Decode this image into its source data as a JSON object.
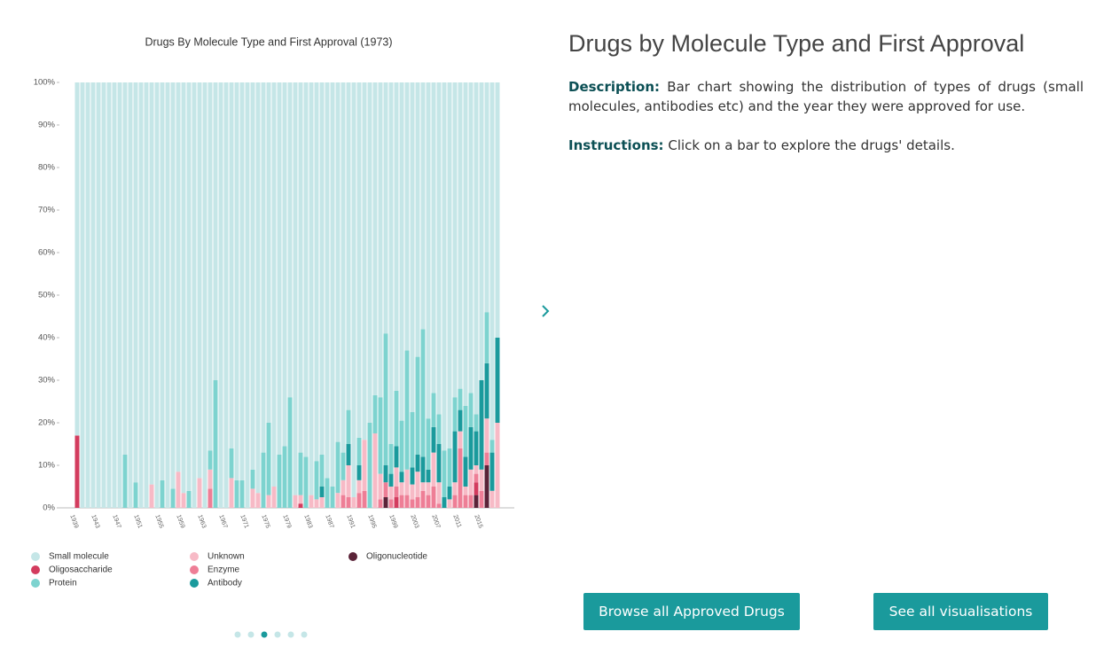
{
  "chart_data": {
    "type": "bar",
    "stacked": true,
    "title": "Drugs By Molecule Type and First Approval (1973)",
    "categories": [
      "1939",
      null,
      null,
      null,
      "1943",
      null,
      null,
      null,
      "1947",
      null,
      null,
      null,
      "1951",
      null,
      null,
      null,
      "1955",
      null,
      null,
      null,
      "1959",
      null,
      null,
      null,
      "1963",
      null,
      null,
      null,
      "1967",
      null,
      null,
      null,
      "1971",
      null,
      null,
      null,
      "1975",
      null,
      null,
      null,
      "1979",
      null,
      null,
      null,
      "1983",
      null,
      null,
      null,
      "1987",
      null,
      null,
      null,
      "1991",
      null,
      null,
      null,
      "1995",
      null,
      null,
      null,
      "1999",
      null,
      null,
      null,
      "2003",
      null,
      null,
      null,
      "2007",
      null,
      null,
      null,
      "2011",
      null,
      null,
      null,
      "2015",
      null,
      null,
      null
    ],
    "ylim": [
      0,
      100
    ],
    "yticks": [
      {
        "value": 0,
        "label": "0%"
      },
      {
        "value": 10,
        "label": "10%"
      },
      {
        "value": 20,
        "label": "20%"
      },
      {
        "value": 30,
        "label": "30%"
      },
      {
        "value": 40,
        "label": "40%"
      },
      {
        "value": 50,
        "label": "50%"
      },
      {
        "value": 60,
        "label": "60%"
      },
      {
        "value": 70,
        "label": "70%"
      },
      {
        "value": 80,
        "label": "80%"
      },
      {
        "value": 90,
        "label": "90%"
      },
      {
        "value": 100,
        "label": "100%"
      }
    ],
    "series": [
      {
        "name": "Small molecule",
        "color": "#c5e6e7",
        "values": [
          83,
          100,
          100,
          100,
          100,
          100,
          100,
          100,
          100,
          87.5,
          100,
          94,
          100,
          100,
          94.5,
          100,
          93.5,
          100,
          95.5,
          91.5,
          96.5,
          96,
          100,
          93,
          100,
          86.5,
          70,
          100,
          100,
          86,
          93.5,
          93.5,
          100,
          91,
          96.5,
          87,
          80,
          95,
          87.5,
          85.5,
          74,
          97,
          87,
          88,
          97,
          89,
          87.5,
          93,
          95,
          84.5,
          87,
          77,
          97.5,
          83.5,
          84,
          80,
          73.5,
          74,
          59,
          85,
          72.5,
          79.5,
          63,
          77.5,
          64.5,
          58,
          79,
          73,
          78,
          86.5,
          86,
          74,
          72,
          76,
          73,
          78,
          70,
          54,
          84,
          60
        ]
      },
      {
        "name": "Oligosaccharide",
        "color": "#d33c5e",
        "values": [
          17,
          0,
          0,
          0,
          0,
          0,
          0,
          0,
          0,
          0,
          0,
          0,
          0,
          0,
          0,
          0,
          0,
          0,
          0,
          0,
          0,
          0,
          0,
          0,
          0,
          0,
          0,
          0,
          0,
          0,
          0,
          0,
          0,
          0,
          0,
          0,
          0,
          0,
          0,
          0,
          0,
          0,
          1,
          0,
          0,
          0,
          0,
          0,
          0,
          0,
          0,
          0,
          0,
          0,
          0,
          0,
          0,
          0,
          0,
          0,
          2.5,
          0,
          0,
          0,
          0,
          0,
          0,
          0,
          0,
          0,
          0,
          0,
          0,
          0,
          0,
          3,
          0,
          0,
          0,
          0
        ]
      },
      {
        "name": "Protein",
        "color": "#7dd3cf",
        "values": [
          0,
          0,
          0,
          0,
          0,
          0,
          0,
          0,
          0,
          12.5,
          0,
          6,
          0,
          0,
          0,
          0,
          6.5,
          0,
          4.5,
          0,
          0,
          4,
          0,
          0,
          0,
          4.5,
          30,
          0,
          0,
          7,
          6.5,
          6.5,
          0,
          4.5,
          0,
          13,
          17,
          0,
          12.5,
          14.5,
          26,
          0,
          10,
          12,
          0,
          9,
          7.5,
          7,
          5,
          12,
          6.5,
          8,
          0,
          6.5,
          0,
          20,
          9,
          18,
          31,
          7,
          13,
          12,
          28,
          13,
          23,
          30,
          12,
          8,
          7,
          11,
          9,
          8,
          5,
          12,
          8,
          4,
          0,
          12,
          3,
          0
        ]
      },
      {
        "name": "Unknown",
        "color": "#f7bac6",
        "values": [
          0,
          0,
          0,
          0,
          0,
          0,
          0,
          0,
          0,
          0,
          0,
          0,
          0,
          0,
          5.5,
          0,
          0,
          0,
          0,
          8.5,
          3.5,
          0,
          0,
          7,
          0,
          4.5,
          0,
          0,
          0,
          7,
          0,
          0,
          0,
          4.5,
          3.5,
          0,
          3,
          5,
          0,
          0,
          0,
          3,
          2,
          0,
          3,
          2,
          2.5,
          0,
          0,
          3.5,
          3.5,
          7.5,
          2.5,
          3,
          12,
          0,
          17.5,
          6,
          0,
          3,
          4.5,
          3,
          6,
          3.5,
          6,
          2,
          3,
          8,
          5,
          0,
          2,
          3,
          4,
          2,
          6,
          2,
          5,
          8,
          4,
          20
        ]
      },
      {
        "name": "Enzyme",
        "color": "#ee7e96",
        "values": [
          0,
          0,
          0,
          0,
          0,
          0,
          0,
          0,
          0,
          0,
          0,
          0,
          0,
          0,
          0,
          0,
          0,
          0,
          0,
          0,
          0,
          0,
          0,
          0,
          0,
          4.5,
          0,
          0,
          0,
          0,
          0,
          0,
          0,
          0,
          0,
          0,
          0,
          0,
          0,
          0,
          0,
          0,
          0,
          0,
          0,
          0,
          0,
          0,
          0,
          0,
          3,
          2.5,
          0,
          3.5,
          4,
          0,
          0,
          2,
          3.5,
          2,
          2.5,
          3,
          3,
          2,
          2.5,
          4,
          3,
          5,
          1,
          0,
          0,
          3,
          14,
          3,
          3,
          2,
          4,
          3,
          0,
          0
        ]
      },
      {
        "name": "Antibody",
        "color": "#1a9a9c",
        "values": [
          0,
          0,
          0,
          0,
          0,
          0,
          0,
          0,
          0,
          0,
          0,
          0,
          0,
          0,
          0,
          0,
          0,
          0,
          0,
          0,
          0,
          0,
          0,
          0,
          0,
          0,
          0,
          0,
          0,
          0,
          0,
          0,
          0,
          0,
          0,
          0,
          0,
          0,
          0,
          0,
          0,
          0,
          0,
          0,
          0,
          0,
          2.5,
          0,
          0,
          0,
          0,
          5,
          0,
          3.5,
          0,
          0,
          0,
          0,
          4,
          3,
          5,
          2.5,
          0,
          4,
          4,
          6,
          3,
          6,
          9,
          2.5,
          3,
          12,
          5,
          7,
          10,
          8,
          21,
          13,
          9,
          20
        ]
      },
      {
        "name": "Oligonucleotide",
        "color": "#5b2338",
        "values": [
          0,
          0,
          0,
          0,
          0,
          0,
          0,
          0,
          0,
          0,
          0,
          0,
          0,
          0,
          0,
          0,
          0,
          0,
          0,
          0,
          0,
          0,
          0,
          0,
          0,
          0,
          0,
          0,
          0,
          0,
          0,
          0,
          0,
          0,
          0,
          0,
          0,
          0,
          0,
          0,
          0,
          0,
          0,
          0,
          0,
          0,
          0,
          0,
          0,
          0,
          0,
          0,
          0,
          0,
          0,
          0,
          0,
          0,
          2.5,
          0,
          0,
          0,
          0,
          0,
          0,
          0,
          0,
          0,
          0,
          0,
          0,
          0,
          0,
          0,
          0,
          3,
          0,
          10,
          0,
          0
        ]
      }
    ]
  },
  "panel": {
    "title": "Drugs by Molecule Type and First Approval",
    "description_label": "Description:",
    "description": "Bar chart showing the distribution of types of drugs (small molecules, antibodies etc) and the year they were approved for use.",
    "instructions_label": "Instructions:",
    "instructions": "Click on a bar to explore the drugs' details.",
    "buttons": [
      "Browse all Approved Drugs",
      "See all visualisations"
    ]
  }
}
